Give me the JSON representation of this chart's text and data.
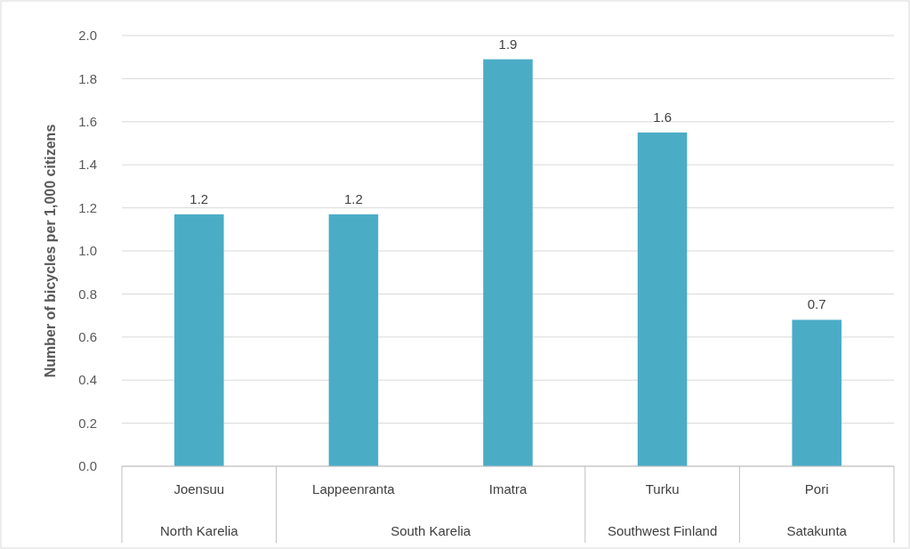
{
  "chart_data": {
    "type": "bar",
    "ylabel": "Number of bicycles per 1,000 citizens",
    "categories": [
      "Joensuu",
      "Lappeenranta",
      "Imatra",
      "Turku",
      "Pori"
    ],
    "values": [
      1.17,
      1.17,
      1.89,
      1.55,
      0.68
    ],
    "value_labels": [
      "1.2",
      "1.2",
      "1.9",
      "1.6",
      "0.7"
    ],
    "color": "#4bacc6",
    "ylim": [
      0,
      2
    ],
    "yticks": [
      {
        "value": 0,
        "label": "0.0"
      },
      {
        "value": 0.2,
        "label": "0.2"
      },
      {
        "value": 0.4,
        "label": "0.4"
      },
      {
        "value": 0.6,
        "label": "0.6"
      },
      {
        "value": 0.8,
        "label": "0.8"
      },
      {
        "value": 1,
        "label": "1.0"
      },
      {
        "value": 1.2,
        "label": "1.2"
      },
      {
        "value": 1.4,
        "label": "1.4"
      },
      {
        "value": 1.6,
        "label": "1.6"
      },
      {
        "value": 1.8,
        "label": "1.8"
      },
      {
        "value": 2,
        "label": "2.0"
      }
    ],
    "grid": "y",
    "annotations": [
      "North Karelia",
      "South Karelia",
      "Southwest Finland",
      "Satakunta"
    ]
  }
}
